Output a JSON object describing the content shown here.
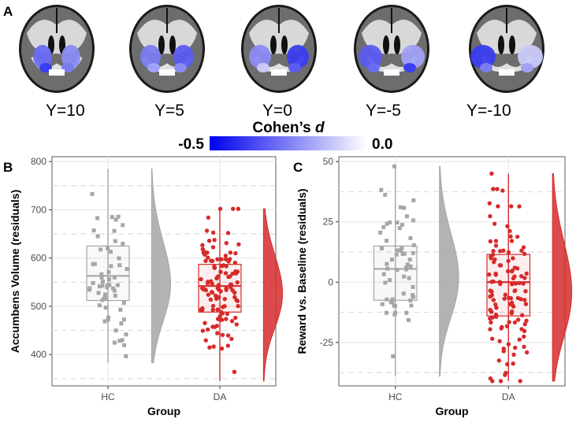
{
  "panel_labels": [
    "A",
    "B",
    "C"
  ],
  "brain_slices": {
    "labels": [
      "Y=10",
      "Y=5",
      "Y=0",
      "Y=-5",
      "Y=-10"
    ],
    "colorbar": {
      "title_prefix": "Cohen’s ",
      "title_var": "d",
      "min_label": "-0.5",
      "max_label": "0.0",
      "color_min": "#0000ee",
      "color_max": "#ffffff"
    }
  },
  "colors": {
    "HC": "#a6a6a6",
    "DA": "#d62b2b",
    "grid": "#e6e6e6",
    "dashed": "#dddddd"
  },
  "chart_data": [
    {
      "type": "box+scatter+violin",
      "panel": "B",
      "xlabel": "Group",
      "ylabel": "Accumbens Volume (residuals)",
      "categories": [
        "HC",
        "DA"
      ],
      "ylim": [
        335,
        810
      ],
      "yticks": [
        400,
        500,
        600,
        700,
        800
      ],
      "dashed_lines": [
        350,
        450,
        550,
        650,
        750
      ],
      "series": [
        {
          "name": "HC",
          "median": 563,
          "q1": 512,
          "q3": 625,
          "whisker_low": 383,
          "whisker_high": 785
        },
        {
          "name": "DA",
          "median": 542,
          "q1": 488,
          "q3": 587,
          "whisker_low": 345,
          "whisker_high": 702
        }
      ]
    },
    {
      "type": "box+scatter+violin",
      "panel": "C",
      "xlabel": "Group",
      "ylabel": "Reward vs. Baseline (residuals)",
      "categories": [
        "HC",
        "DA"
      ],
      "ylim": [
        -43,
        52
      ],
      "yticks": [
        -25,
        0,
        25,
        50
      ],
      "dashed_lines": [
        -37.5,
        -12.5,
        12.5,
        37.5
      ],
      "series": [
        {
          "name": "HC",
          "median": 5.5,
          "q1": -7.5,
          "q3": 15,
          "whisker_low": -39,
          "whisker_high": 48
        },
        {
          "name": "DA",
          "median": 0,
          "q1": -14,
          "q3": 11.5,
          "whisker_low": -41,
          "whisker_high": 45
        }
      ]
    }
  ]
}
